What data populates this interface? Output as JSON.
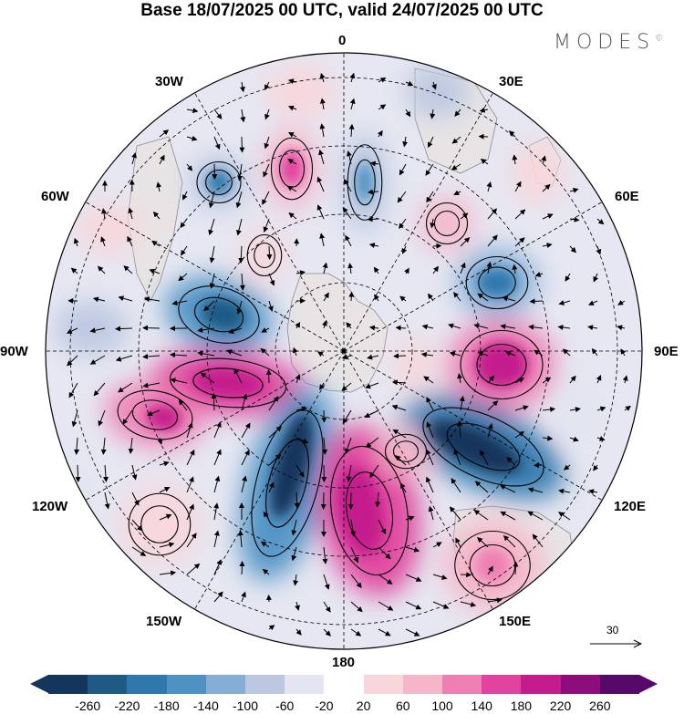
{
  "title": "Base 18/07/2025 00 UTC, valid 24/07/2025 00 UTC",
  "brand": "MODES",
  "brand_mark": "©",
  "lon_labels": {
    "n": "0",
    "ne": "30E",
    "e1": "60E",
    "e": "90E",
    "se1": "120E",
    "se": "150E",
    "s": "180",
    "sw": "150W",
    "sw1": "120W",
    "w": "90W",
    "nw1": "60W",
    "nw": "30W"
  },
  "reference_vector": "30",
  "colorbar": {
    "ticks": [
      "-260",
      "-220",
      "-180",
      "-140",
      "-100",
      "-60",
      "-20",
      "20",
      "60",
      "100",
      "140",
      "180",
      "220",
      "260"
    ],
    "colors": [
      "#15365c",
      "#1d5a86",
      "#2f78ad",
      "#4e92c4",
      "#85aed6",
      "#bcc8e2",
      "#e3e5f1",
      "#ffffff",
      "#f8d7db",
      "#f5b6c9",
      "#ee7eb3",
      "#e0449e",
      "#c41c8c",
      "#8e0d7c",
      "#56086b"
    ]
  },
  "map_colors": {
    "ocean": "#e6e7f2",
    "land": "#e8e4e5",
    "coast": "#8a8a8a",
    "grid": "#000000"
  }
}
